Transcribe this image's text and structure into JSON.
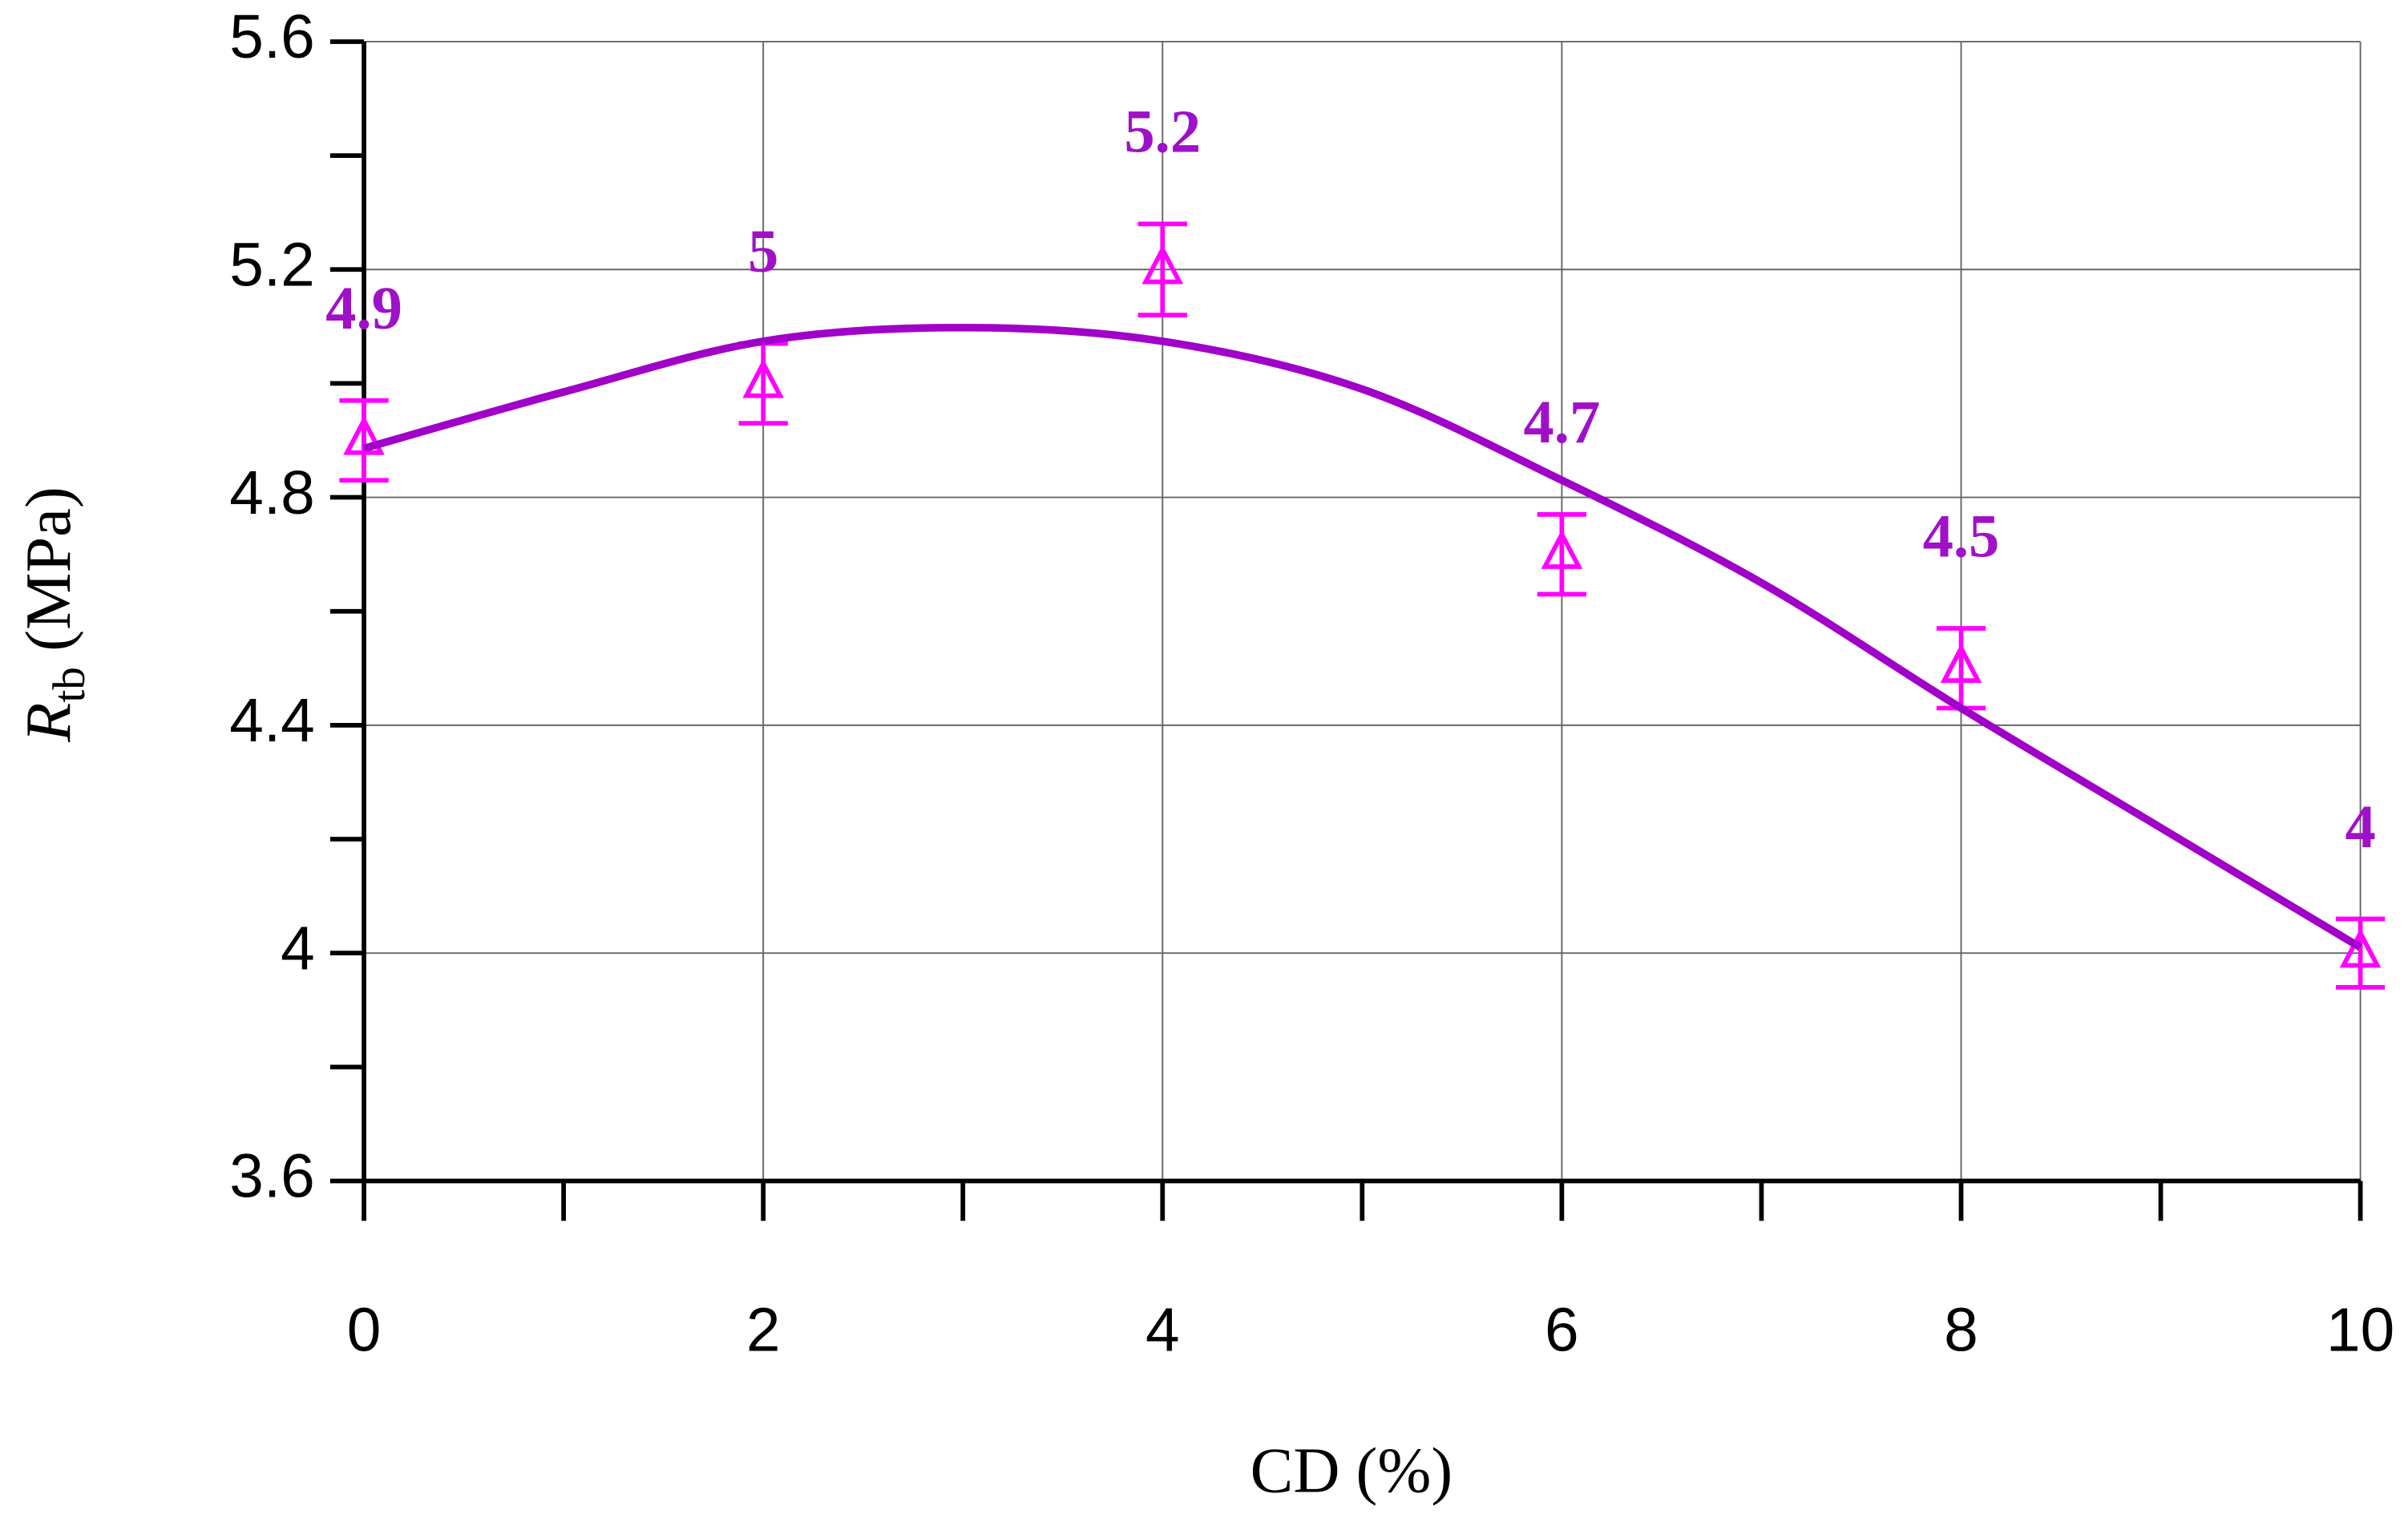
{
  "chart_data": {
    "type": "scatter",
    "xlabel": "CD (%)",
    "ylabel": {
      "main": "R",
      "sub": "tb",
      "unit": "(MPa)"
    },
    "xlim": [
      0,
      10
    ],
    "xticks": [
      0,
      2,
      4,
      6,
      8,
      10
    ],
    "xminorticks": [
      1,
      3,
      5,
      7,
      9
    ],
    "ylim": [
      3.6,
      5.6
    ],
    "yticks": [
      3.6,
      4,
      4.4,
      4.8,
      5.2,
      5.6
    ],
    "yminorticks": [
      3.8,
      4.2,
      4.6,
      5.0,
      5.4
    ],
    "grid": true,
    "series": [
      {
        "type": "errorbar",
        "color": "#ff00ff",
        "label_color": "#a010c8",
        "x": [
          0,
          2,
          4,
          6,
          8,
          10
        ],
        "values": [
          4.9,
          5,
          5.2,
          4.7,
          4.5,
          4
        ],
        "errors": [
          0.07,
          0.07,
          0.08,
          0.07,
          0.07,
          0.06
        ]
      },
      {
        "type": "line",
        "color": "#a000c8",
        "x": [
          0,
          1,
          2,
          3,
          4,
          5,
          6,
          7,
          8,
          9,
          10
        ],
        "values": [
          4.886,
          4.985,
          5.074,
          5.098,
          5.074,
          4.99,
          4.83,
          4.65,
          4.43,
          4.22,
          4.01
        ]
      }
    ]
  }
}
